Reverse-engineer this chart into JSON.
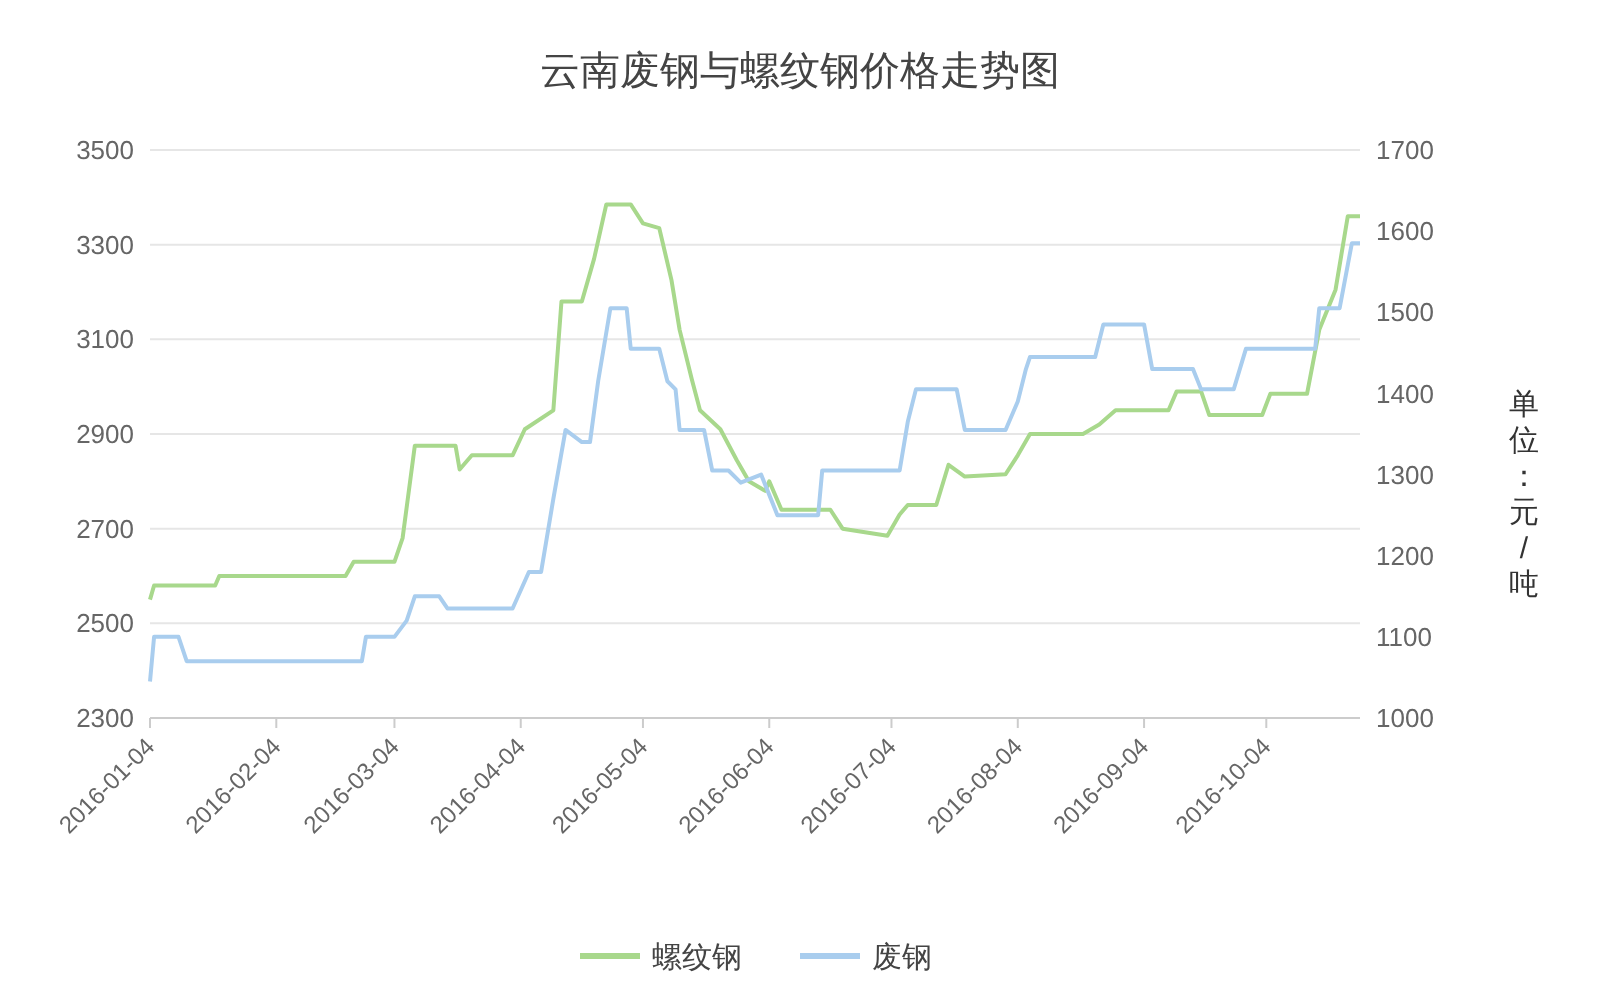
{
  "chart_data": {
    "type": "line",
    "title": "云南废钢与螺纹钢价格走势图",
    "y2label": "单位：元/吨",
    "xlim": [
      "2016-01-04",
      "2016-10-27"
    ],
    "xticks": [
      {
        "value": "2016-01-04",
        "label": "2016-01-04"
      },
      {
        "value": "2016-02-04",
        "label": "2016-02-04"
      },
      {
        "value": "2016-03-04",
        "label": "2016-03-04"
      },
      {
        "value": "2016-04-04",
        "label": "2016-04-04"
      },
      {
        "value": "2016-05-04",
        "label": "2016-05-04"
      },
      {
        "value": "2016-06-04",
        "label": "2016-06-04"
      },
      {
        "value": "2016-07-04",
        "label": "2016-07-04"
      },
      {
        "value": "2016-08-04",
        "label": "2016-08-04"
      },
      {
        "value": "2016-09-04",
        "label": "2016-09-04"
      },
      {
        "value": "2016-10-04",
        "label": "2016-10-04"
      }
    ],
    "ylim": [
      2300,
      3500
    ],
    "yticks": [
      2300,
      2500,
      2700,
      2900,
      3100,
      3300,
      3500
    ],
    "y2lim": [
      1000,
      1700
    ],
    "y2ticks": [
      1000,
      1100,
      1200,
      1300,
      1400,
      1500,
      1600,
      1700
    ],
    "grid": "y",
    "legend": "bottom",
    "marker": "none",
    "line_style": "solid",
    "series": [
      {
        "name": "螺纹钢",
        "color": "#a8d88c",
        "x": [
          "2016-01-04",
          "2016-01-05",
          "2016-01-20",
          "2016-01-21",
          "2016-02-21",
          "2016-02-23",
          "2016-03-04",
          "2016-03-06",
          "2016-03-09",
          "2016-03-19",
          "2016-03-20",
          "2016-03-23",
          "2016-04-02",
          "2016-04-05",
          "2016-04-12",
          "2016-04-14",
          "2016-04-19",
          "2016-04-22",
          "2016-04-25",
          "2016-05-01",
          "2016-05-04",
          "2016-05-08",
          "2016-05-11",
          "2016-05-13",
          "2016-05-16",
          "2016-05-18",
          "2016-05-23",
          "2016-05-27",
          "2016-05-30",
          "2016-06-03",
          "2016-06-04",
          "2016-06-07",
          "2016-06-19",
          "2016-06-22",
          "2016-07-03",
          "2016-07-06",
          "2016-07-08",
          "2016-07-15",
          "2016-07-18",
          "2016-07-22",
          "2016-08-01",
          "2016-08-04",
          "2016-08-07",
          "2016-08-20",
          "2016-08-24",
          "2016-08-28",
          "2016-09-10",
          "2016-09-12",
          "2016-09-18",
          "2016-09-20",
          "2016-10-03",
          "2016-10-05",
          "2016-10-14",
          "2016-10-17",
          "2016-10-21",
          "2016-10-24",
          "2016-10-27"
        ],
        "values": [
          2550,
          2580,
          2580,
          2600,
          2600,
          2630,
          2630,
          2680,
          2875,
          2875,
          2825,
          2855,
          2855,
          2910,
          2950,
          3180,
          3180,
          3270,
          3385,
          3385,
          3345,
          3335,
          3225,
          3120,
          3015,
          2950,
          2910,
          2845,
          2800,
          2780,
          2800,
          2740,
          2740,
          2700,
          2685,
          2730,
          2750,
          2750,
          2835,
          2810,
          2815,
          2855,
          2900,
          2900,
          2920,
          2950,
          2950,
          2990,
          2990,
          2940,
          2940,
          2985,
          2985,
          3120,
          3205,
          3360,
          3360
        ]
      },
      {
        "name": "废钢",
        "color": "#a9cdee",
        "axis": "y2",
        "x": [
          "2016-01-04",
          "2016-01-05",
          "2016-01-11",
          "2016-01-13",
          "2016-02-25",
          "2016-02-26",
          "2016-03-04",
          "2016-03-07",
          "2016-03-09",
          "2016-03-15",
          "2016-03-17",
          "2016-04-02",
          "2016-04-06",
          "2016-04-09",
          "2016-04-12",
          "2016-04-15",
          "2016-04-19",
          "2016-04-21",
          "2016-04-23",
          "2016-04-26",
          "2016-04-30",
          "2016-05-01",
          "2016-05-08",
          "2016-05-10",
          "2016-05-12",
          "2016-05-13",
          "2016-05-19",
          "2016-05-21",
          "2016-05-25",
          "2016-05-28",
          "2016-06-02",
          "2016-06-06",
          "2016-06-16",
          "2016-06-17",
          "2016-07-06",
          "2016-07-08",
          "2016-07-10",
          "2016-07-20",
          "2016-07-22",
          "2016-08-01",
          "2016-08-04",
          "2016-08-06",
          "2016-08-07",
          "2016-08-23",
          "2016-08-25",
          "2016-09-04",
          "2016-09-06",
          "2016-09-16",
          "2016-09-18",
          "2016-09-26",
          "2016-09-29",
          "2016-10-16",
          "2016-10-17",
          "2016-10-22",
          "2016-10-25",
          "2016-10-27"
        ],
        "values": [
          1045,
          1100,
          1100,
          1070,
          1070,
          1100,
          1100,
          1120,
          1150,
          1150,
          1135,
          1135,
          1180,
          1180,
          1270,
          1355,
          1340,
          1340,
          1415,
          1505,
          1505,
          1455,
          1455,
          1415,
          1405,
          1355,
          1355,
          1305,
          1305,
          1290,
          1300,
          1250,
          1250,
          1305,
          1305,
          1365,
          1405,
          1405,
          1355,
          1355,
          1390,
          1430,
          1445,
          1445,
          1485,
          1485,
          1430,
          1430,
          1405,
          1405,
          1455,
          1455,
          1505,
          1505,
          1585,
          1585
        ]
      }
    ]
  }
}
